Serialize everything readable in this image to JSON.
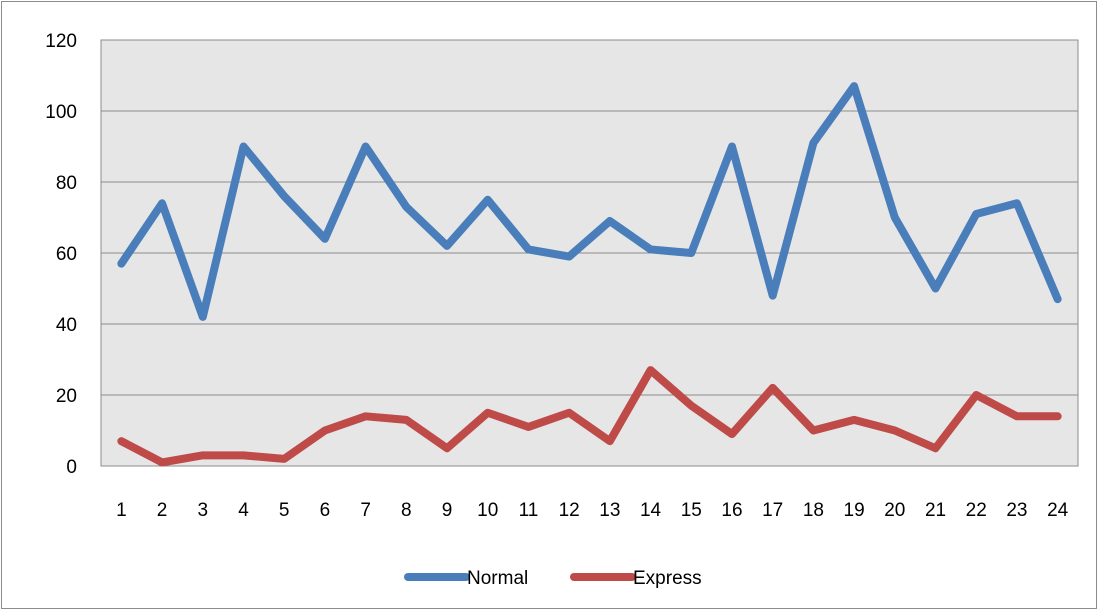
{
  "chart_data": {
    "type": "line",
    "title": "",
    "xlabel": "",
    "ylabel": "",
    "categories": [
      "1",
      "2",
      "3",
      "4",
      "5",
      "6",
      "7",
      "8",
      "9",
      "10",
      "11",
      "12",
      "13",
      "14",
      "15",
      "16",
      "17",
      "18",
      "19",
      "20",
      "21",
      "22",
      "23",
      "24"
    ],
    "ylim": [
      0,
      120
    ],
    "yticks": [
      0,
      20,
      40,
      60,
      80,
      100,
      120
    ],
    "grid": true,
    "legend_position": "bottom",
    "plot_background": "#e6e6e6",
    "series": [
      {
        "name": "Normal",
        "color": "#4a7ebb",
        "values": [
          57,
          74,
          42,
          90,
          76,
          64,
          90,
          73,
          62,
          75,
          61,
          59,
          69,
          61,
          60,
          90,
          48,
          91,
          107,
          70,
          50,
          71,
          74,
          47
        ]
      },
      {
        "name": "Express",
        "color": "#be4b48",
        "values": [
          7,
          1,
          3,
          3,
          2,
          10,
          14,
          13,
          5,
          15,
          11,
          15,
          7,
          27,
          17,
          9,
          22,
          10,
          13,
          10,
          5,
          20,
          14,
          14
        ]
      }
    ]
  }
}
